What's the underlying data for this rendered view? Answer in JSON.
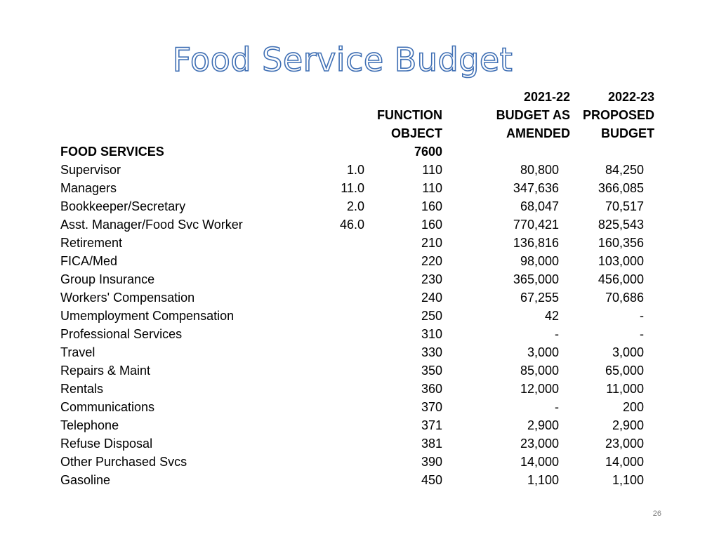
{
  "title": "Food Service Budget",
  "headers": {
    "row1": {
      "col_2021": "2021-22",
      "col_2022": "2022-23"
    },
    "row2": {
      "function": "FUNCTION",
      "col_2021": "BUDGET AS",
      "col_2022": "PROPOSED"
    },
    "row3": {
      "function": "OBJECT",
      "col_2021": "AMENDED",
      "col_2022": "BUDGET"
    }
  },
  "section": {
    "label": "FOOD SERVICES",
    "code": "7600"
  },
  "rows": [
    {
      "label": "Supervisor",
      "qty": "1.0",
      "object": "110",
      "b2021": "80,800",
      "b2022": "84,250"
    },
    {
      "label": "Managers",
      "qty": "11.0",
      "object": "110",
      "b2021": "347,636",
      "b2022": "366,085"
    },
    {
      "label": "Bookkeeper/Secretary",
      "qty": "2.0",
      "object": "160",
      "b2021": "68,047",
      "b2022": "70,517"
    },
    {
      "label": "Asst. Manager/Food Svc Worker",
      "qty": "46.0",
      "object": "160",
      "b2021": "770,421",
      "b2022": "825,543"
    },
    {
      "label": "Retirement",
      "qty": "",
      "object": "210",
      "b2021": "136,816",
      "b2022": "160,356"
    },
    {
      "label": "FICA/Med",
      "qty": "",
      "object": "220",
      "b2021": "98,000",
      "b2022": "103,000"
    },
    {
      "label": "Group Insurance",
      "qty": "",
      "object": "230",
      "b2021": "365,000",
      "b2022": "456,000"
    },
    {
      "label": "Workers' Compensation",
      "qty": "",
      "object": "240",
      "b2021": "67,255",
      "b2022": "70,686"
    },
    {
      "label": "Umemployment Compensation",
      "qty": "",
      "object": "250",
      "b2021": "42",
      "b2022": "-"
    },
    {
      "label": "Professional Services",
      "qty": "",
      "object": "310",
      "b2021": "-",
      "b2022": "-"
    },
    {
      "label": "Travel",
      "qty": "",
      "object": "330",
      "b2021": "3,000",
      "b2022": "3,000"
    },
    {
      "label": "Repairs & Maint",
      "qty": "",
      "object": "350",
      "b2021": "85,000",
      "b2022": "65,000"
    },
    {
      "label": "Rentals",
      "qty": "",
      "object": "360",
      "b2021": "12,000",
      "b2022": "11,000"
    },
    {
      "label": "Communications",
      "qty": "",
      "object": "370",
      "b2021": "-",
      "b2022": "200"
    },
    {
      "label": "Telephone",
      "qty": "",
      "object": "371",
      "b2021": "2,900",
      "b2022": "2,900"
    },
    {
      "label": "Refuse Disposal",
      "qty": "",
      "object": "381",
      "b2021": "23,000",
      "b2022": "23,000"
    },
    {
      "label": "Other Purchased Svcs",
      "qty": "",
      "object": "390",
      "b2021": "14,000",
      "b2022": "14,000"
    },
    {
      "label": "Gasoline",
      "qty": "",
      "object": "450",
      "b2021": "1,100",
      "b2022": "1,100"
    }
  ],
  "page_number": "26",
  "colors": {
    "title_outline": "#3f6fb4"
  }
}
